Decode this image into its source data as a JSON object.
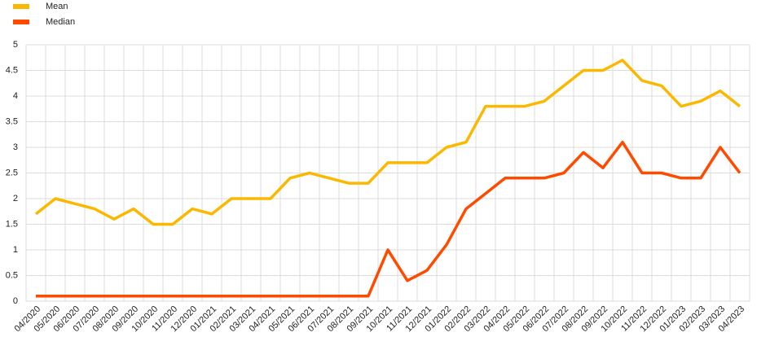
{
  "chart_data": {
    "type": "line",
    "categories": [
      "04/2020",
      "05/2020",
      "06/2020",
      "07/2020",
      "08/2020",
      "09/2020",
      "10/2020",
      "11/2020",
      "12/2020",
      "01/2021",
      "02/2021",
      "03/2021",
      "04/2021",
      "05/2021",
      "06/2021",
      "07/2021",
      "08/2021",
      "09/2021",
      "10/2021",
      "11/2021",
      "12/2021",
      "01/2022",
      "02/2022",
      "03/2022",
      "04/2022",
      "05/2022",
      "06/2022",
      "07/2022",
      "08/2022",
      "09/2022",
      "10/2022",
      "11/2022",
      "12/2022",
      "01/2023",
      "02/2023",
      "03/2023",
      "04/2023"
    ],
    "series": [
      {
        "name": "Mean",
        "color": "#fbb800",
        "values": [
          1.7,
          2.0,
          1.9,
          1.8,
          1.6,
          1.8,
          1.5,
          1.5,
          1.8,
          1.7,
          2.0,
          2.0,
          2.0,
          2.4,
          2.5,
          2.4,
          2.3,
          2.3,
          2.7,
          2.7,
          2.7,
          3.0,
          3.1,
          3.8,
          3.8,
          3.8,
          3.9,
          4.2,
          4.5,
          4.5,
          4.7,
          4.3,
          4.2,
          3.8,
          3.9,
          4.1,
          3.8
        ]
      },
      {
        "name": "Median",
        "color": "#ff4b00",
        "values": [
          0.1,
          0.1,
          0.1,
          0.1,
          0.1,
          0.1,
          0.1,
          0.1,
          0.1,
          0.1,
          0.1,
          0.1,
          0.1,
          0.1,
          0.1,
          0.1,
          0.1,
          0.1,
          1.0,
          0.4,
          0.6,
          1.1,
          1.8,
          2.1,
          2.4,
          2.4,
          2.4,
          2.5,
          2.9,
          2.6,
          3.1,
          2.5,
          2.5,
          2.4,
          2.4,
          3.0,
          2.5
        ]
      }
    ],
    "ylim": [
      0,
      5
    ],
    "yticks": [
      0,
      0.5,
      1,
      1.5,
      2,
      2.5,
      3,
      3.5,
      4,
      4.5,
      5
    ],
    "grid": true,
    "legend": "top-left"
  }
}
